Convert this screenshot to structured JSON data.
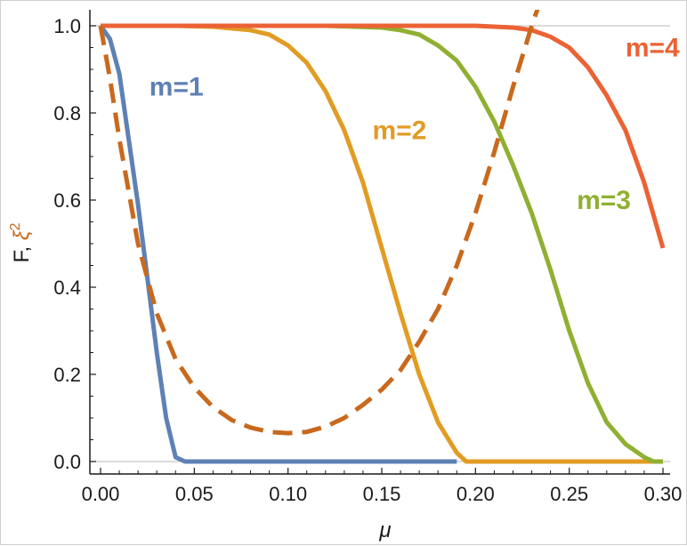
{
  "chart_data": {
    "type": "line",
    "title": "",
    "xlabel": "μ",
    "ylabel_parts": [
      "F, ",
      "ξ",
      "2"
    ],
    "xlim": [
      0.0,
      0.3
    ],
    "ylim": [
      0.0,
      1.0
    ],
    "xticks": [
      "0.00",
      "0.05",
      "0.10",
      "0.15",
      "0.20",
      "0.25",
      "0.30"
    ],
    "xtick_values": [
      0.0,
      0.05,
      0.1,
      0.15,
      0.2,
      0.25,
      0.3
    ],
    "yticks": [
      "0.0",
      "0.2",
      "0.4",
      "0.6",
      "0.8",
      "1.0"
    ],
    "ytick_values": [
      0.0,
      0.2,
      0.4,
      0.6,
      0.8,
      1.0
    ],
    "grid": "horizontal at 0.0 and 1.0",
    "series": [
      {
        "name": "m=1",
        "color": "#5e81b5",
        "dashed": false,
        "x": [
          0.0,
          0.005,
          0.01,
          0.015,
          0.02,
          0.025,
          0.03,
          0.035,
          0.04,
          0.045,
          0.05,
          0.1,
          0.15,
          0.19
        ],
        "y": [
          1.0,
          0.97,
          0.89,
          0.74,
          0.59,
          0.42,
          0.25,
          0.1,
          0.01,
          0.0,
          0.0,
          0.0,
          0.0,
          0.0
        ]
      },
      {
        "name": "m=2",
        "color": "#e19c24",
        "dashed": false,
        "x": [
          0.0,
          0.04,
          0.06,
          0.08,
          0.09,
          0.1,
          0.11,
          0.12,
          0.13,
          0.14,
          0.15,
          0.16,
          0.17,
          0.18,
          0.19,
          0.195,
          0.2,
          0.25,
          0.3
        ],
        "y": [
          1.0,
          1.0,
          0.998,
          0.99,
          0.98,
          0.955,
          0.915,
          0.85,
          0.76,
          0.64,
          0.49,
          0.34,
          0.2,
          0.09,
          0.02,
          0.0,
          0.0,
          0.0,
          0.0
        ]
      },
      {
        "name": "m=3",
        "color": "#8fb032",
        "dashed": false,
        "x": [
          0.0,
          0.12,
          0.15,
          0.16,
          0.17,
          0.18,
          0.19,
          0.2,
          0.21,
          0.22,
          0.23,
          0.24,
          0.25,
          0.26,
          0.27,
          0.28,
          0.29,
          0.295,
          0.3
        ],
        "y": [
          1.0,
          1.0,
          0.996,
          0.99,
          0.98,
          0.955,
          0.92,
          0.86,
          0.78,
          0.68,
          0.57,
          0.44,
          0.3,
          0.18,
          0.09,
          0.04,
          0.01,
          0.0,
          0.0
        ]
      },
      {
        "name": "m=4",
        "color": "#eb6235",
        "dashed": false,
        "x": [
          0.0,
          0.2,
          0.22,
          0.23,
          0.24,
          0.25,
          0.26,
          0.27,
          0.28,
          0.29,
          0.3
        ],
        "y": [
          1.0,
          1.0,
          0.996,
          0.99,
          0.975,
          0.95,
          0.905,
          0.84,
          0.76,
          0.64,
          0.49
        ]
      },
      {
        "name": "ξ²",
        "color": "#c8691e",
        "dashed": true,
        "x": [
          0.0,
          0.005,
          0.01,
          0.015,
          0.02,
          0.03,
          0.04,
          0.05,
          0.06,
          0.07,
          0.08,
          0.09,
          0.1,
          0.11,
          0.12,
          0.13,
          0.14,
          0.15,
          0.16,
          0.17,
          0.18,
          0.19,
          0.2,
          0.21,
          0.22,
          0.23,
          0.234
        ],
        "y": [
          1.0,
          0.88,
          0.74,
          0.62,
          0.5,
          0.34,
          0.235,
          0.17,
          0.125,
          0.095,
          0.078,
          0.068,
          0.065,
          0.068,
          0.08,
          0.1,
          0.13,
          0.165,
          0.21,
          0.275,
          0.35,
          0.45,
          0.57,
          0.71,
          0.86,
          1.0,
          1.05
        ]
      }
    ],
    "annotations": [
      {
        "text": "m=1",
        "color": "#5e81b5",
        "x": 0.026,
        "y": 0.84
      },
      {
        "text": "m=2",
        "color": "#e19c24",
        "x": 0.145,
        "y": 0.74
      },
      {
        "text": "m=3",
        "color": "#8fb032",
        "x": 0.254,
        "y": 0.58
      },
      {
        "text": "m=4",
        "color": "#eb6235",
        "x": 0.28,
        "y": 0.93
      }
    ]
  }
}
